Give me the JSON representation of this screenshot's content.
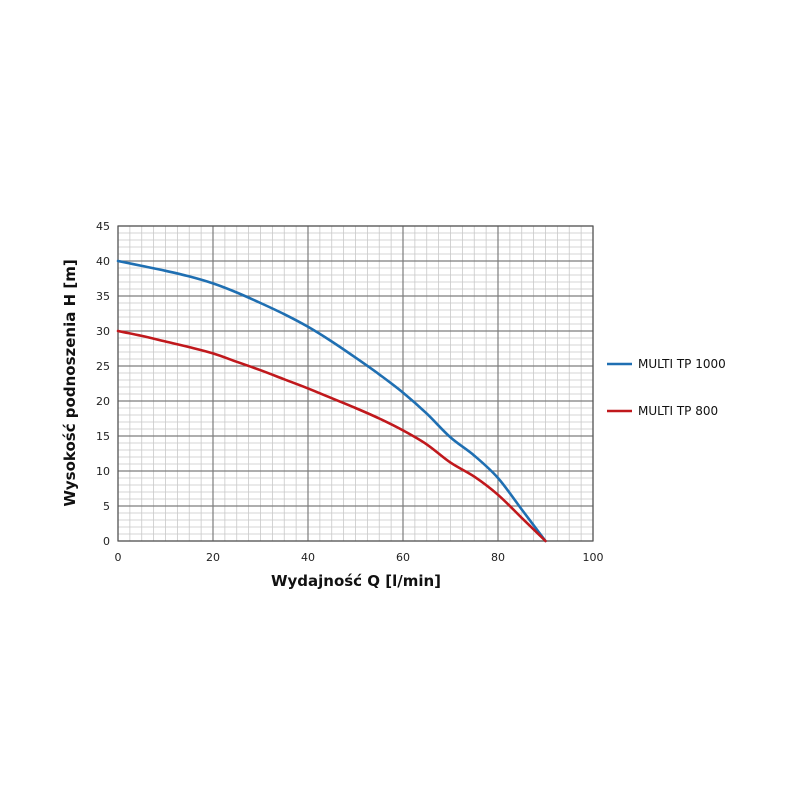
{
  "chart_data": {
    "type": "line",
    "xlabel": "Wydajność Q [l/min]",
    "ylabel": "Wysokość podnoszenia H [m]",
    "xlim": [
      0,
      100
    ],
    "ylim": [
      0,
      45
    ],
    "x_major_ticks": [
      0,
      20,
      40,
      60,
      80,
      100
    ],
    "y_major_ticks": [
      0,
      5,
      10,
      15,
      20,
      25,
      30,
      35,
      40,
      45
    ],
    "x_minor_step": 2.5,
    "y_minor_step": 1,
    "grid": true,
    "legend_position": "right",
    "series": [
      {
        "name": "MULTI TP 1000",
        "color": "#1f6fb2",
        "x": [
          0,
          5,
          10,
          15,
          20,
          25,
          30,
          35,
          40,
          45,
          50,
          55,
          60,
          65,
          70,
          75,
          80,
          85,
          90
        ],
        "y": [
          40,
          39.3,
          38.6,
          37.8,
          36.8,
          35.5,
          34.0,
          32.4,
          30.6,
          28.5,
          26.2,
          23.8,
          21.2,
          18.2,
          14.8,
          12.2,
          9.0,
          4.5,
          0
        ]
      },
      {
        "name": "MULTI TP 800",
        "color": "#c0181c",
        "x": [
          0,
          5,
          10,
          15,
          20,
          25,
          30,
          35,
          40,
          45,
          50,
          55,
          60,
          65,
          70,
          75,
          80,
          85,
          90
        ],
        "y": [
          30,
          29.3,
          28.5,
          27.7,
          26.8,
          25.6,
          24.4,
          23.1,
          21.8,
          20.4,
          19.0,
          17.5,
          15.8,
          13.8,
          11.2,
          9.2,
          6.6,
          3.3,
          0
        ]
      }
    ]
  }
}
